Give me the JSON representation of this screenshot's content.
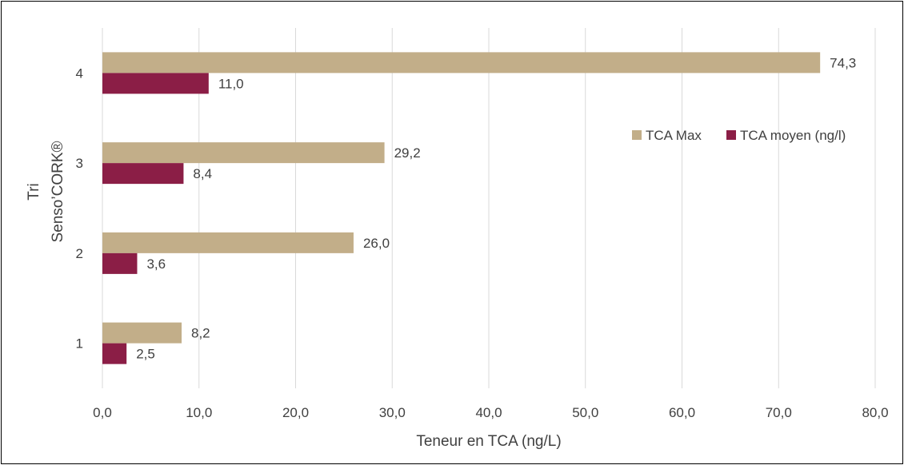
{
  "chart_data": {
    "type": "bar",
    "orientation": "horizontal",
    "categories": [
      "1",
      "2",
      "3",
      "4"
    ],
    "series": [
      {
        "name": "TCA Max",
        "values": [
          8.2,
          26.0,
          29.2,
          74.3
        ],
        "labels": [
          "8,2",
          "26,0",
          "29,2",
          "74,3"
        ],
        "color": "#c2ae89"
      },
      {
        "name": "TCA moyen (ng/l)",
        "values": [
          2.5,
          3.6,
          8.4,
          11.0
        ],
        "labels": [
          "2,5",
          "3,6",
          "8,4",
          "11,0"
        ],
        "color": "#8b1e46"
      }
    ],
    "xlabel": "Teneur en TCA (ng/L)",
    "ylabel_lines": [
      "Tri",
      "Senso’CORK®"
    ],
    "xlim": [
      0,
      80
    ],
    "xticks": [
      0,
      10,
      20,
      30,
      40,
      50,
      60,
      70,
      80
    ],
    "xtick_labels": [
      "0,0",
      "10,0",
      "20,0",
      "30,0",
      "40,0",
      "50,0",
      "60,0",
      "70,0",
      "80,0"
    ],
    "grid": "vertical",
    "legend_position": "right",
    "gridline_color": "#d9d9d9"
  }
}
